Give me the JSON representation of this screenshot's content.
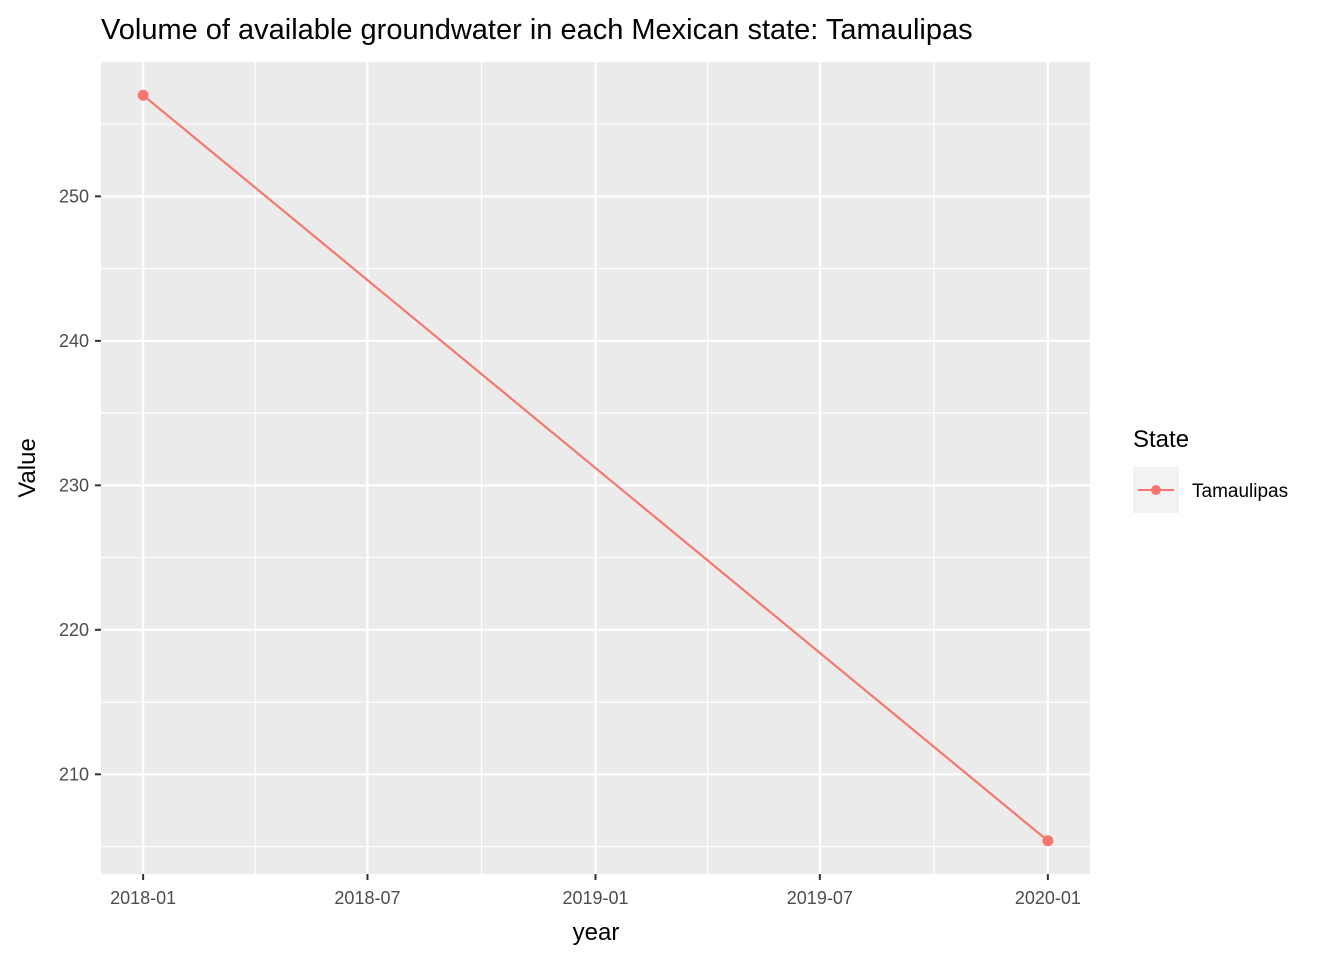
{
  "chart_data": {
    "type": "line",
    "title": "Volume of available groundwater in each Mexican state: Tamaulipas",
    "xlabel": "year",
    "ylabel": "Value",
    "x_ticks": [
      "2018-01",
      "2018-07",
      "2019-01",
      "2019-07",
      "2020-01"
    ],
    "y_ticks": [
      210,
      220,
      230,
      240,
      250
    ],
    "xlim": [
      "2017-11-28",
      "2020-02-04"
    ],
    "ylim": [
      203.1,
      259.3
    ],
    "grid": true,
    "legend": {
      "title": "State",
      "position": "right",
      "entries": [
        "Tamaulipas"
      ]
    },
    "series": [
      {
        "name": "Tamaulipas",
        "color": "#F8766D",
        "x": [
          "2018-01-01",
          "2020-01-01"
        ],
        "values": [
          257.0,
          205.4
        ]
      }
    ]
  }
}
